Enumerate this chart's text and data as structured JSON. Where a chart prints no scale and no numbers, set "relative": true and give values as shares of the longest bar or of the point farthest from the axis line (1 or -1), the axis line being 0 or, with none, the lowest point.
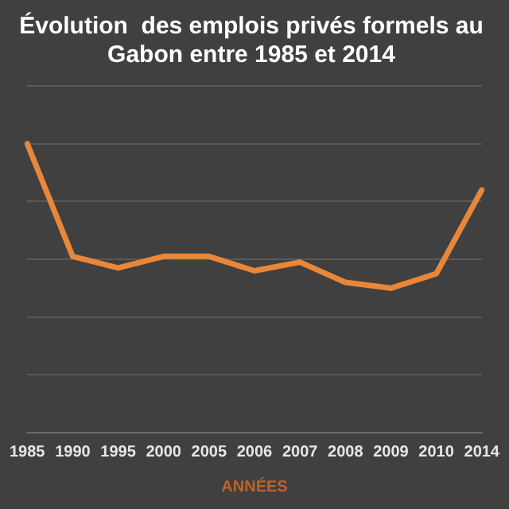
{
  "chart_data": {
    "type": "line",
    "title": "Évolution  des emplois privés formels au Gabon entre 1985 et 2014",
    "xlabel": "ANNÉES",
    "categories": [
      "1985",
      "1990",
      "1995",
      "2000",
      "2005",
      "2006",
      "2007",
      "2008",
      "2009",
      "2010",
      "2014"
    ],
    "relative": true,
    "grid": "y",
    "legend": false,
    "marker": "none",
    "line_style": "solid",
    "series": [
      {
        "color": "#e8873a",
        "values": [
          1,
          0.61,
          0.57,
          0.61,
          0.61,
          0.56,
          0.59,
          0.52,
          0.5,
          0.55,
          0.84
        ]
      }
    ]
  }
}
